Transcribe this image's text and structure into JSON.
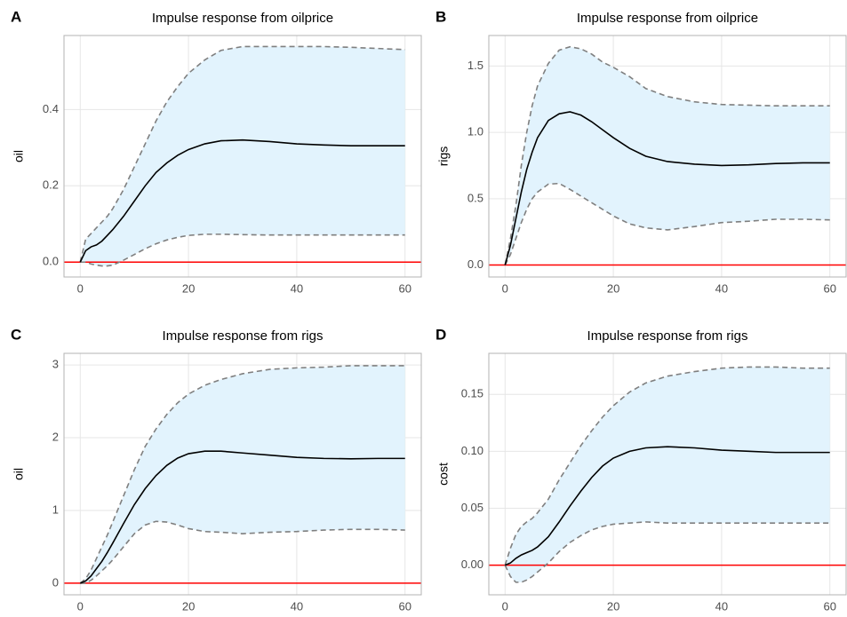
{
  "chart_data": [
    {
      "type": "line",
      "tag": "A",
      "title": "Impulse response from oilprice",
      "ylabel": "oil",
      "x": [
        0,
        1,
        2,
        3,
        4,
        5,
        6,
        8,
        10,
        12,
        14,
        16,
        18,
        20,
        23,
        26,
        30,
        35,
        40,
        45,
        50,
        55,
        60
      ],
      "values": [
        0,
        0.03,
        0.04,
        0.045,
        0.055,
        0.07,
        0.085,
        0.12,
        0.16,
        0.2,
        0.235,
        0.26,
        0.28,
        0.295,
        0.31,
        0.318,
        0.32,
        0.316,
        0.31,
        0.307,
        0.305,
        0.305,
        0.305
      ],
      "upper": [
        0,
        0.06,
        0.075,
        0.09,
        0.105,
        0.12,
        0.14,
        0.19,
        0.25,
        0.31,
        0.37,
        0.42,
        0.46,
        0.495,
        0.53,
        0.555,
        0.565,
        0.565,
        0.565,
        0.565,
        0.563,
        0.56,
        0.557
      ],
      "lower": [
        0,
        0,
        -0.005,
        -0.008,
        -0.01,
        -0.01,
        -0.008,
        0.005,
        0.02,
        0.035,
        0.048,
        0.058,
        0.065,
        0.07,
        0.073,
        0.073,
        0.072,
        0.071,
        0.071,
        0.071,
        0.071,
        0.071,
        0.071
      ],
      "xlim": [
        -3,
        63
      ],
      "xticks": [
        0,
        20,
        40,
        60
      ],
      "ylim": [
        -0.039,
        0.594
      ],
      "yticks": [
        {
          "value": 0,
          "label": "0.0"
        },
        0.2,
        0.4
      ],
      "hline": 0,
      "color": "#000000",
      "bound_color": "#7f7f7f",
      "band_color": "#e2f3fd",
      "hline_color": "#ff0000",
      "grid": true
    },
    {
      "type": "line",
      "tag": "B",
      "title": "Impulse response from oilprice",
      "ylabel": "rigs",
      "x": [
        0,
        1,
        2,
        3,
        4,
        5,
        6,
        8,
        10,
        12,
        14,
        16,
        18,
        20,
        23,
        26,
        30,
        35,
        40,
        45,
        50,
        55,
        60
      ],
      "values": [
        0,
        0.15,
        0.35,
        0.55,
        0.72,
        0.85,
        0.96,
        1.09,
        1.14,
        1.155,
        1.13,
        1.08,
        1.02,
        0.96,
        0.88,
        0.82,
        0.78,
        0.76,
        0.75,
        0.755,
        0.765,
        0.77,
        0.77
      ],
      "upper": [
        0,
        0.2,
        0.45,
        0.75,
        1.0,
        1.2,
        1.35,
        1.52,
        1.62,
        1.645,
        1.63,
        1.59,
        1.53,
        1.49,
        1.42,
        1.33,
        1.27,
        1.23,
        1.21,
        1.205,
        1.2,
        1.2,
        1.2
      ],
      "lower": [
        0,
        0.08,
        0.2,
        0.32,
        0.42,
        0.5,
        0.55,
        0.61,
        0.615,
        0.57,
        0.52,
        0.47,
        0.42,
        0.37,
        0.31,
        0.28,
        0.265,
        0.29,
        0.32,
        0.33,
        0.345,
        0.345,
        0.34
      ],
      "xlim": [
        -3,
        63
      ],
      "xticks": [
        0,
        20,
        40,
        60
      ],
      "ylim": [
        -0.09,
        1.73
      ],
      "yticks": [
        {
          "value": 0,
          "label": "0.0"
        },
        0.5,
        {
          "value": 1,
          "label": "1.0"
        },
        1.5
      ],
      "hline": 0,
      "color": "#000000",
      "bound_color": "#7f7f7f",
      "band_color": "#e2f3fd",
      "hline_color": "#ff0000",
      "grid": true
    },
    {
      "type": "line",
      "tag": "C",
      "title": "Impulse response from rigs",
      "ylabel": "oil",
      "x": [
        0,
        1,
        2,
        3,
        4,
        5,
        6,
        8,
        10,
        12,
        14,
        16,
        18,
        20,
        23,
        26,
        30,
        35,
        40,
        45,
        50,
        55,
        60
      ],
      "values": [
        0,
        0.03,
        0.1,
        0.2,
        0.3,
        0.42,
        0.55,
        0.82,
        1.08,
        1.3,
        1.48,
        1.62,
        1.72,
        1.78,
        1.815,
        1.815,
        1.79,
        1.76,
        1.73,
        1.715,
        1.71,
        1.715,
        1.715
      ],
      "upper": [
        0,
        0.06,
        0.18,
        0.34,
        0.5,
        0.66,
        0.84,
        1.2,
        1.56,
        1.88,
        2.12,
        2.32,
        2.48,
        2.6,
        2.72,
        2.8,
        2.88,
        2.94,
        2.96,
        2.97,
        2.99,
        2.99,
        2.99
      ],
      "lower": [
        0,
        0,
        0.04,
        0.1,
        0.17,
        0.24,
        0.32,
        0.5,
        0.68,
        0.8,
        0.85,
        0.84,
        0.8,
        0.75,
        0.71,
        0.7,
        0.68,
        0.7,
        0.71,
        0.73,
        0.74,
        0.74,
        0.73
      ],
      "xlim": [
        -3,
        63
      ],
      "xticks": [
        0,
        20,
        40,
        60
      ],
      "ylim": [
        -0.16,
        3.16
      ],
      "yticks": [
        0,
        1,
        2,
        3
      ],
      "hline": 0,
      "color": "#000000",
      "bound_color": "#7f7f7f",
      "band_color": "#e2f3fd",
      "hline_color": "#ff0000",
      "grid": true
    },
    {
      "type": "line",
      "tag": "D",
      "title": "Impulse response from rigs",
      "ylabel": "cost",
      "x": [
        0,
        1,
        2,
        3,
        4,
        5,
        6,
        8,
        10,
        12,
        14,
        16,
        18,
        20,
        23,
        26,
        30,
        35,
        40,
        45,
        50,
        55,
        60
      ],
      "values": [
        0,
        0.002,
        0.006,
        0.009,
        0.011,
        0.013,
        0.016,
        0.025,
        0.038,
        0.052,
        0.065,
        0.077,
        0.087,
        0.094,
        0.1,
        0.103,
        0.104,
        0.103,
        0.101,
        0.1,
        0.099,
        0.099,
        0.099
      ],
      "upper": [
        0,
        0.015,
        0.027,
        0.034,
        0.038,
        0.041,
        0.046,
        0.058,
        0.075,
        0.09,
        0.105,
        0.118,
        0.13,
        0.14,
        0.152,
        0.16,
        0.166,
        0.17,
        0.173,
        0.174,
        0.174,
        0.173,
        0.173
      ],
      "lower": [
        0,
        -0.01,
        -0.015,
        -0.015,
        -0.013,
        -0.01,
        -0.006,
        0.002,
        0.012,
        0.02,
        0.026,
        0.031,
        0.034,
        0.036,
        0.037,
        0.038,
        0.037,
        0.037,
        0.037,
        0.037,
        0.037,
        0.037,
        0.037
      ],
      "xlim": [
        -3,
        63
      ],
      "xticks": [
        0,
        20,
        40,
        60
      ],
      "ylim": [
        -0.026,
        0.186
      ],
      "yticks": [
        {
          "value": 0,
          "label": "0.00"
        },
        {
          "value": 0.05,
          "label": "0.05"
        },
        {
          "value": 0.1,
          "label": "0.10"
        },
        {
          "value": 0.15,
          "label": "0.15"
        }
      ],
      "hline": 0,
      "color": "#000000",
      "bound_color": "#7f7f7f",
      "band_color": "#e2f3fd",
      "hline_color": "#ff0000",
      "grid": true
    }
  ]
}
